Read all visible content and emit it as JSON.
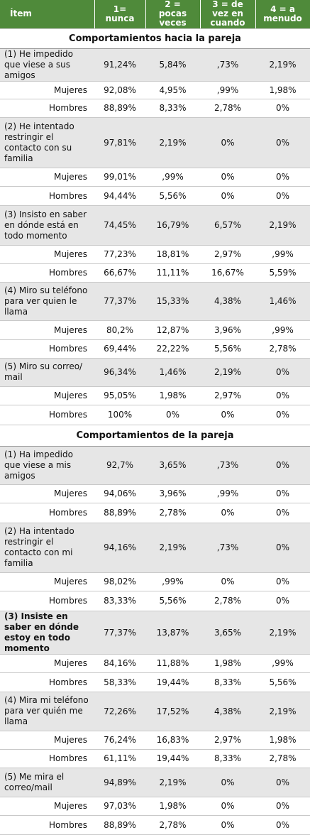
{
  "header": [
    "Ítem",
    "1= nunca",
    "2 = pocas veces",
    "3 = de vez en cuando",
    "4 = a menudo"
  ],
  "sections": [
    {
      "title": "Comportamientos hacia la pareja",
      "items": [
        {
          "label": "(1) He impedido que viese a sus amigos",
          "values": [
            "91,24%",
            "5,84%",
            ",73%",
            "2,19%"
          ],
          "rows": [
            {
              "label": "Mujeres",
              "values": [
                "92,08%",
                "4,95%",
                ",99%",
                "1,98%"
              ]
            },
            {
              "label": "Hombres",
              "values": [
                "88,89%",
                "8,33%",
                "2,78%",
                "0%"
              ]
            }
          ]
        },
        {
          "label": "(2) He intentado restringir el contacto con su familia",
          "values": [
            "97,81%",
            "2,19%",
            "0%",
            "0%"
          ],
          "rows": [
            {
              "label": "Mujeres",
              "values": [
                "99,01%",
                ",99%",
                "0%",
                "0%"
              ]
            },
            {
              "label": "Hombres",
              "values": [
                "94,44%",
                "5,56%",
                "0%",
                "0%"
              ]
            }
          ]
        },
        {
          "label": "(3) Insisto en saber en dónde está en todo momento",
          "values": [
            "74,45%",
            "16,79%",
            "6,57%",
            "2,19%"
          ],
          "rows": [
            {
              "label": "Mujeres",
              "values": [
                "77,23%",
                "18,81%",
                "2,97%",
                ",99%"
              ]
            },
            {
              "label": "Hombres",
              "values": [
                "66,67%",
                "11,11%",
                "16,67%",
                "5,59%"
              ]
            }
          ]
        },
        {
          "label": "(4) Miro su teléfono para ver quien le llama",
          "values": [
            "77,37%",
            "15,33%",
            "4,38%",
            "1,46%"
          ],
          "rows": [
            {
              "label": "Mujeres",
              "values": [
                "80,2%",
                "12,87%",
                "3,96%",
                ",99%"
              ]
            },
            {
              "label": "Hombres",
              "values": [
                "69,44%",
                "22,22%",
                "5,56%",
                "2,78%"
              ]
            }
          ]
        },
        {
          "label": "(5) Miro su correo/ mail",
          "values": [
            "96,34%",
            "1,46%",
            "2,19%",
            "0%"
          ],
          "rows": [
            {
              "label": "Mujeres",
              "values": [
                "95,05%",
                "1,98%",
                "2,97%",
                "0%"
              ]
            },
            {
              "label": "Hombres",
              "values": [
                "100%",
                "0%",
                "0%",
                "0%"
              ]
            }
          ]
        }
      ]
    },
    {
      "title": "Comportamientos de la pareja",
      "items": [
        {
          "label": "(1) Ha impedido que viese a mis amigos",
          "values": [
            "92,7%",
            "3,65%",
            ",73%",
            "0%"
          ],
          "rows": [
            {
              "label": "Mujeres",
              "values": [
                "94,06%",
                "3,96%",
                ",99%",
                "0%"
              ]
            },
            {
              "label": "Hombres",
              "values": [
                "88,89%",
                "2,78%",
                "0%",
                "0%"
              ]
            }
          ]
        },
        {
          "label": "(2) Ha intentado restringir el contacto con mi familia",
          "values": [
            "94,16%",
            "2,19%",
            ",73%",
            "0%"
          ],
          "rows": [
            {
              "label": "Mujeres",
              "values": [
                "98,02%",
                ",99%",
                "0%",
                "0%"
              ]
            },
            {
              "label": "Hombres",
              "values": [
                "83,33%",
                "5,56%",
                "2,78%",
                "0%"
              ]
            }
          ]
        },
        {
          "label": "(3) Insiste en saber en dónde estoy en todo momento",
          "values": [
            "77,37%",
            "13,87%",
            "3,65%",
            "2,19%"
          ],
          "rows": [
            {
              "label": "Mujeres",
              "values": [
                "84,16%",
                "11,88%",
                "1,98%",
                ",99%"
              ]
            },
            {
              "label": "Hombres",
              "values": [
                "58,33%",
                "19,44%",
                "8,33%",
                "5,56%"
              ]
            }
          ]
        },
        {
          "label": "(4) Mira mi teléfono para ver quién me llama",
          "values": [
            "72,26%",
            "17,52%",
            "4,38%",
            "2,19%"
          ],
          "rows": [
            {
              "label": "Mujeres",
              "values": [
                "76,24%",
                "16,83%",
                "2,97%",
                "1,98%"
              ]
            },
            {
              "label": "Hombres",
              "values": [
                "61,11%",
                "19,44%",
                "8,33%",
                "2,78%"
              ]
            }
          ]
        },
        {
          "label": "(5) Me mira el correo/mail",
          "values": [
            "94,89%",
            "2,19%",
            "0%",
            "0%"
          ],
          "rows": [
            {
              "label": "Mujeres",
              "values": [
                "97,03%",
                "1,98%",
                "0%",
                "0%"
              ]
            },
            {
              "label": "Hombres",
              "values": [
                "88,89%",
                "2,78%",
                "0%",
                "0%"
              ]
            }
          ]
        }
      ]
    }
  ]
}
